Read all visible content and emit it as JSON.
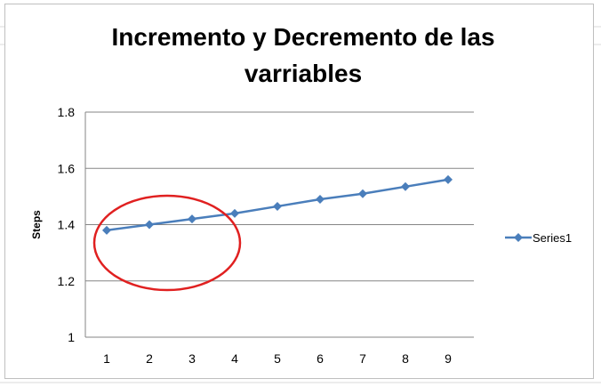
{
  "colors": {
    "series": "#4a7ebb",
    "grid": "#858585",
    "annotation": "#e02020",
    "sheet_grid": "#d9d9d9"
  },
  "chart_data": {
    "type": "line",
    "title": "Incremento y Decremento de las varriables",
    "xlabel": "",
    "ylabel": "Steps",
    "categories": [
      "1",
      "2",
      "3",
      "4",
      "5",
      "6",
      "7",
      "8",
      "9"
    ],
    "series": [
      {
        "name": "Series1",
        "values": [
          1.38,
          1.4,
          1.42,
          1.44,
          1.465,
          1.49,
          1.51,
          1.535,
          1.56
        ]
      }
    ],
    "ylim": [
      1,
      1.8
    ],
    "yticks": [
      1,
      1.2,
      1.4,
      1.6,
      1.8
    ],
    "ytick_labels": [
      "1",
      "1.2",
      "1.4",
      "1.6",
      "1.8"
    ],
    "grid": true,
    "legend": "right",
    "marker": "diamond",
    "annotation": {
      "shape": "ellipse",
      "around_categories": [
        "1",
        "2",
        "3"
      ]
    }
  }
}
